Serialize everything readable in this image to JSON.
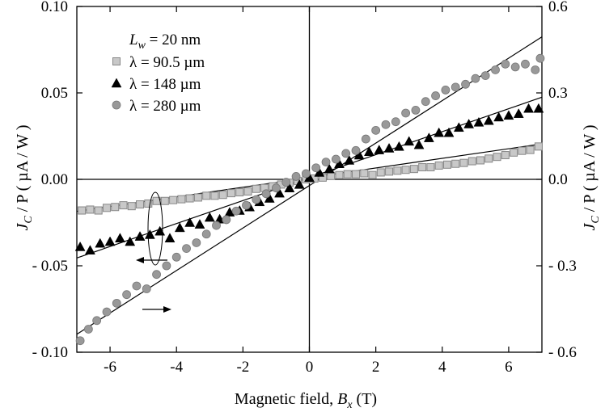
{
  "chart_data": {
    "type": "scatter",
    "xlabel": {
      "main": "Magnetic field, ",
      "var": "B",
      "sub": "x",
      "tail": " (T)"
    },
    "ylabel_left": {
      "var": "J",
      "sub": "C",
      "tail": " / P  ( µA / W )"
    },
    "ylabel_right": {
      "var": "J",
      "sub": "C",
      "tail": " / P  ( µA / W )"
    },
    "xlim": [
      -7,
      7
    ],
    "ylim_left": [
      -0.1,
      0.1
    ],
    "ylim_right": [
      -0.6,
      0.6
    ],
    "x_ticks": [
      -6,
      -4,
      -2,
      0,
      2,
      4,
      6
    ],
    "x_tick_labels": [
      "-6",
      "-4",
      "-2",
      "0",
      "2",
      "4",
      "6"
    ],
    "y_left_ticks": [
      -0.1,
      -0.05,
      0,
      0.05,
      0.1
    ],
    "y_left_tick_labels": [
      "- 0.10",
      "- 0.05",
      "0.00",
      "0.05",
      "0.10"
    ],
    "y_right_ticks": [
      -0.6,
      -0.3,
      0,
      0.3,
      0.6
    ],
    "y_right_tick_labels": [
      "- 0.6",
      "- 0.3",
      "0.0",
      "0.3",
      "0.6"
    ],
    "legend": {
      "title": {
        "var": "L",
        "sub": "w",
        "tail": " = 20 nm"
      },
      "position": "top-left"
    },
    "series": [
      {
        "name": "λ = 90.5 µm",
        "marker": "square",
        "color": "#c8c8c8",
        "axis": "left",
        "fit_line": [
          [
            -7,
            -0.0185
          ],
          [
            7,
            0.0205
          ]
        ],
        "x": [
          -6.85,
          -6.6,
          -6.35,
          -6.1,
          -5.85,
          -5.6,
          -5.35,
          -5.1,
          -4.85,
          -4.6,
          -4.35,
          -4.1,
          -3.85,
          -3.6,
          -3.35,
          -3.1,
          -2.85,
          -2.6,
          -2.35,
          -2.1,
          -1.85,
          -1.6,
          -1.35,
          -1.1,
          -0.85,
          -0.6,
          -0.35,
          -0.1,
          0.15,
          0.4,
          0.65,
          0.9,
          1.15,
          1.4,
          1.65,
          1.9,
          2.15,
          2.4,
          2.65,
          2.9,
          3.15,
          3.4,
          3.65,
          3.9,
          4.15,
          4.4,
          4.65,
          4.9,
          5.15,
          5.4,
          5.65,
          5.9,
          6.15,
          6.4,
          6.65,
          6.9
        ],
        "y": [
          -0.018,
          -0.0175,
          -0.018,
          -0.0165,
          -0.016,
          -0.015,
          -0.0155,
          -0.0145,
          -0.014,
          -0.0125,
          -0.0125,
          -0.012,
          -0.0115,
          -0.011,
          -0.0105,
          -0.0095,
          -0.0095,
          -0.009,
          -0.008,
          -0.0075,
          -0.007,
          -0.0055,
          -0.005,
          -0.004,
          -0.003,
          -0.002,
          -0.001,
          0.0,
          0.0005,
          0.001,
          0.002,
          0.0025,
          0.003,
          0.003,
          0.0035,
          0.0025,
          0.004,
          0.0045,
          0.005,
          0.0055,
          0.006,
          0.007,
          0.007,
          0.008,
          0.0085,
          0.009,
          0.0095,
          0.0105,
          0.011,
          0.012,
          0.013,
          0.014,
          0.0155,
          0.0165,
          0.017,
          0.019
        ]
      },
      {
        "name": "λ = 148 µm",
        "marker": "triangle",
        "color": "#000000",
        "axis": "left",
        "fit_line": [
          [
            -7,
            -0.0455
          ],
          [
            7,
            0.0475
          ]
        ],
        "x": [
          -6.9,
          -6.6,
          -6.3,
          -6.0,
          -5.7,
          -5.4,
          -5.1,
          -4.8,
          -4.5,
          -4.2,
          -3.9,
          -3.6,
          -3.3,
          -3.0,
          -2.7,
          -2.4,
          -2.1,
          -1.8,
          -1.5,
          -1.2,
          -0.9,
          -0.6,
          -0.3,
          0.0,
          0.3,
          0.6,
          0.9,
          1.2,
          1.5,
          1.8,
          2.1,
          2.4,
          2.7,
          3.0,
          3.3,
          3.6,
          3.9,
          4.2,
          4.5,
          4.8,
          5.1,
          5.4,
          5.7,
          6.0,
          6.3,
          6.6,
          6.9
        ],
        "y": [
          -0.039,
          -0.041,
          -0.037,
          -0.036,
          -0.034,
          -0.036,
          -0.033,
          -0.032,
          -0.03,
          -0.034,
          -0.028,
          -0.025,
          -0.026,
          -0.022,
          -0.023,
          -0.019,
          -0.018,
          -0.016,
          -0.013,
          -0.011,
          -0.008,
          -0.005,
          -0.003,
          0.001,
          0.004,
          0.006,
          0.009,
          0.011,
          0.014,
          0.016,
          0.017,
          0.018,
          0.019,
          0.022,
          0.02,
          0.024,
          0.027,
          0.027,
          0.03,
          0.032,
          0.033,
          0.034,
          0.036,
          0.037,
          0.038,
          0.041,
          0.041
        ]
      },
      {
        "name": "λ = 280 µm",
        "marker": "circle",
        "color": "#999999",
        "axis": "right",
        "fit_line": [
          [
            -7,
            -0.5376
          ],
          [
            7,
            0.4944
          ]
        ],
        "x": [
          -6.9,
          -6.65,
          -6.4,
          -6.1,
          -5.8,
          -5.5,
          -5.2,
          -4.9,
          -4.6,
          -4.3,
          -4.0,
          -3.7,
          -3.4,
          -3.1,
          -2.8,
          -2.5,
          -2.2,
          -1.9,
          -1.6,
          -1.3,
          -1.0,
          -0.7,
          -0.4,
          -0.1,
          0.2,
          0.5,
          0.8,
          1.1,
          1.4,
          1.7,
          2.0,
          2.3,
          2.6,
          2.9,
          3.2,
          3.5,
          3.8,
          4.1,
          4.4,
          4.7,
          5.0,
          5.3,
          5.6,
          5.9,
          6.2,
          6.5,
          6.8,
          6.95
        ],
        "y": [
          -0.56,
          -0.52,
          -0.49,
          -0.46,
          -0.43,
          -0.4,
          -0.37,
          -0.38,
          -0.33,
          -0.3,
          -0.27,
          -0.24,
          -0.22,
          -0.19,
          -0.16,
          -0.14,
          -0.11,
          -0.09,
          -0.07,
          -0.05,
          -0.03,
          -0.01,
          0.01,
          0.02,
          0.04,
          0.06,
          0.07,
          0.09,
          0.1,
          0.14,
          0.17,
          0.19,
          0.2,
          0.23,
          0.24,
          0.27,
          0.29,
          0.31,
          0.32,
          0.33,
          0.35,
          0.36,
          0.38,
          0.4,
          0.39,
          0.4,
          0.38,
          0.42
        ]
      }
    ],
    "annotations": {
      "left_arrow_target": "left",
      "right_arrow_target": "right"
    }
  }
}
